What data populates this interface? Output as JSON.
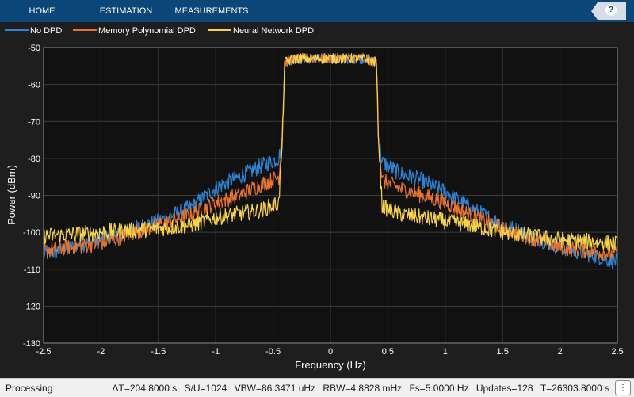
{
  "toolstrip": {
    "tabs": [
      {
        "label": "HOME"
      },
      {
        "label": "ESTIMATION"
      },
      {
        "label": "MEASUREMENTS"
      }
    ],
    "help_icon": "question-mark-icon",
    "help_glyph": "?"
  },
  "chart_data": {
    "type": "line",
    "xlabel": "Frequency (Hz)",
    "ylabel": "Power (dBm)",
    "xlim": [
      -2.5,
      2.5
    ],
    "ylim": [
      -130,
      -50
    ],
    "xticks": [
      -2.5,
      -2,
      -1.5,
      -1,
      -0.5,
      0,
      0.5,
      1,
      1.5,
      2,
      2.5
    ],
    "yticks": [
      -50,
      -60,
      -70,
      -80,
      -90,
      -100,
      -110,
      -120,
      -130
    ],
    "grid": true,
    "legend_position": "top",
    "series": [
      {
        "name": "No DPD",
        "color": "#2b85d6",
        "x": [
          -2.5,
          -2.0,
          -1.5,
          -1.2,
          -1.0,
          -0.8,
          -0.6,
          -0.45,
          -0.42,
          -0.4,
          -0.3,
          0,
          0.3,
          0.4,
          0.42,
          0.45,
          0.6,
          0.8,
          1.0,
          1.2,
          1.5,
          2.0,
          2.5
        ],
        "y": [
          -106,
          -102,
          -97,
          -93,
          -88,
          -85,
          -82,
          -80,
          -75,
          -54,
          -53,
          -53,
          -53,
          -54,
          -75,
          -81,
          -84,
          -86,
          -89,
          -93,
          -98,
          -104,
          -108
        ]
      },
      {
        "name": "Memory Polynomial DPD",
        "color": "#e8732c",
        "x": [
          -2.5,
          -2.0,
          -1.5,
          -1.2,
          -1.0,
          -0.8,
          -0.6,
          -0.45,
          -0.42,
          -0.4,
          -0.3,
          0,
          0.3,
          0.4,
          0.42,
          0.45,
          0.6,
          0.8,
          1.0,
          1.2,
          1.5,
          2.0,
          2.5
        ],
        "y": [
          -105,
          -103,
          -98,
          -95,
          -92,
          -90,
          -87,
          -85,
          -75,
          -54,
          -53,
          -53,
          -53,
          -54,
          -75,
          -86,
          -88,
          -90,
          -92,
          -95,
          -99,
          -104,
          -106
        ]
      },
      {
        "name": "Neural Network DPD",
        "color": "#f7d34a",
        "x": [
          -2.5,
          -2.0,
          -1.5,
          -1.2,
          -1.0,
          -0.8,
          -0.6,
          -0.45,
          -0.42,
          -0.4,
          -0.3,
          0,
          0.3,
          0.4,
          0.42,
          0.45,
          0.6,
          0.8,
          1.0,
          1.2,
          1.5,
          2.0,
          2.5
        ],
        "y": [
          -101,
          -100,
          -99,
          -98,
          -96,
          -95,
          -94,
          -92,
          -75,
          -54,
          -53,
          -53,
          -53,
          -54,
          -75,
          -93,
          -95,
          -96,
          -97,
          -98,
          -100,
          -102,
          -103
        ]
      }
    ]
  },
  "statusbar": {
    "status": "Processing",
    "fields": [
      "ΔT=204.8000 s",
      "S/U=1024",
      "VBW=86.3471 uHz",
      "RBW=4.8828 mHz",
      "Fs=5.0000 Hz",
      "Updates=128",
      "T=26303.8000 s"
    ],
    "menu_icon": "vertical-ellipsis-icon",
    "menu_glyph": "⋮"
  }
}
